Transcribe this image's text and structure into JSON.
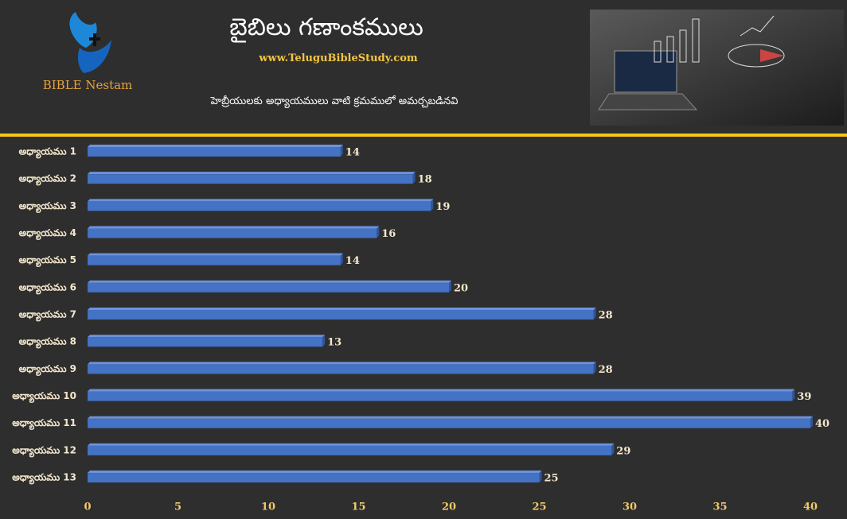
{
  "header": {
    "logo_text": "BIBLE Nestam",
    "title": "బైబిలు గణాంకములు",
    "website": "www.TeluguBibleStudy.com",
    "subtitle": "హెబ్రీయులకు అధ్యాయములు వాటి క్రమములో అమర్చబడినవి"
  },
  "chart_data": {
    "type": "hbar",
    "color": "#4472c4",
    "categories": [
      "అధ్యాయము 1",
      "అధ్యాయము 2",
      "అధ్యాయము 3",
      "అధ్యాయము 4",
      "అధ్యాయము 5",
      "అధ్యాయము 6",
      "అధ్యాయము 7",
      "అధ్యాయము 8",
      "అధ్యాయము 9",
      "అధ్యాయము 10",
      "అధ్యాయము 11",
      "అధ్యాయము 12",
      "అధ్యాయము 13"
    ],
    "values": [
      14,
      18,
      19,
      16,
      14,
      20,
      28,
      13,
      28,
      39,
      40,
      29,
      25
    ],
    "xlim": [
      0,
      40
    ],
    "xticks": [
      0,
      5,
      10,
      15,
      20,
      25,
      30,
      35,
      40
    ]
  }
}
